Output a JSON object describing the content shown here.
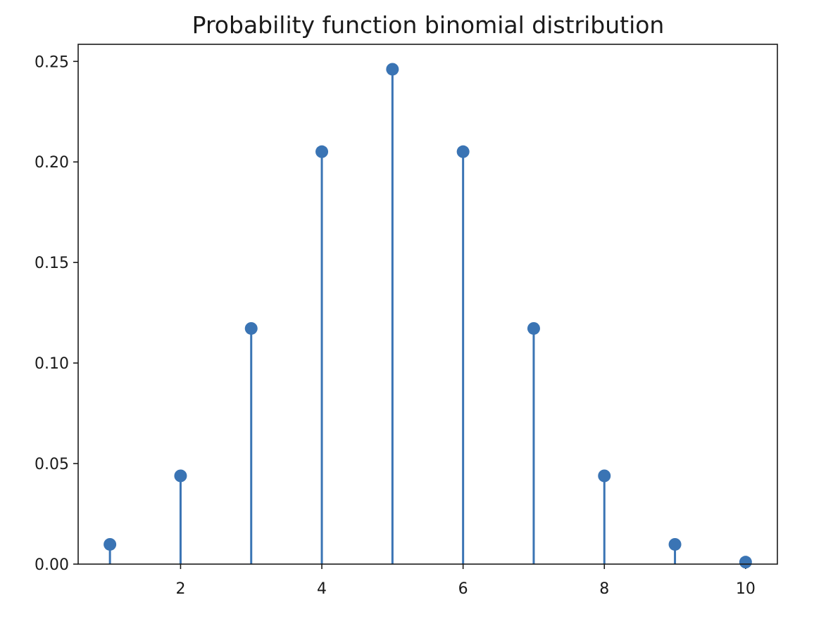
{
  "chart_data": {
    "type": "stem",
    "title": "Probability function binomial distribution",
    "xlabel": "",
    "ylabel": "",
    "x": [
      1,
      2,
      3,
      4,
      5,
      6,
      7,
      8,
      9,
      10
    ],
    "y": [
      0.0098,
      0.0439,
      0.1172,
      0.2051,
      0.2461,
      0.2051,
      0.1172,
      0.0439,
      0.0098,
      0.001
    ],
    "xlim": [
      0.55,
      10.45
    ],
    "ylim": [
      0,
      0.2585
    ],
    "xticks": [
      2,
      4,
      6,
      8,
      10
    ],
    "xtick_labels": [
      "2",
      "4",
      "6",
      "8",
      "10"
    ],
    "yticks": [
      0,
      0.05,
      0.1,
      0.15,
      0.2,
      0.25
    ],
    "ytick_labels": [
      "0.00",
      "0.05",
      "0.10",
      "0.15",
      "0.20",
      "0.25"
    ],
    "grid": false,
    "color": "#3a74b4"
  }
}
